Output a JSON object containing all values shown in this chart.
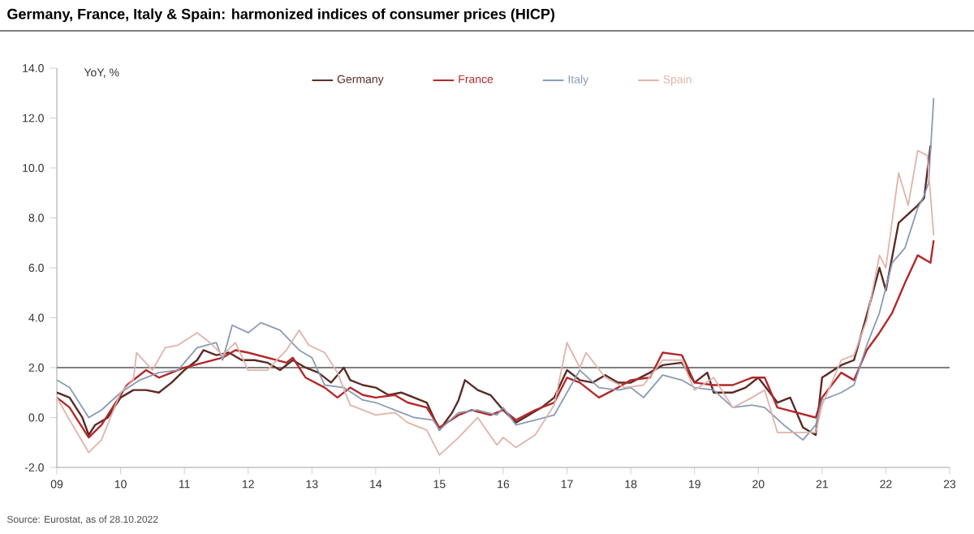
{
  "chart_data": {
    "type": "line",
    "title": "Germany, France, Italy & Spain: harmonized indices of consumer prices (HICP)",
    "ylabel": "YoY, %",
    "annotations": [
      "Source: Eurostat, as of 28.10.2022"
    ],
    "xlim": [
      2009,
      2023
    ],
    "ylim": [
      -2,
      14
    ],
    "xticks": [
      {
        "value": 2009,
        "label": "09"
      },
      {
        "value": 2010,
        "label": "10"
      },
      {
        "value": 2011,
        "label": "11"
      },
      {
        "value": 2012,
        "label": "12"
      },
      {
        "value": 2013,
        "label": "13"
      },
      {
        "value": 2014,
        "label": "14"
      },
      {
        "value": 2015,
        "label": "15"
      },
      {
        "value": 2016,
        "label": "16"
      },
      {
        "value": 2017,
        "label": "17"
      },
      {
        "value": 2018,
        "label": "18"
      },
      {
        "value": 2019,
        "label": "19"
      },
      {
        "value": 2020,
        "label": "20"
      },
      {
        "value": 2021,
        "label": "21"
      },
      {
        "value": 2022,
        "label": "22"
      },
      {
        "value": 2023,
        "label": "23"
      }
    ],
    "yticks": [
      {
        "value": -2,
        "label": "-2.0"
      },
      {
        "value": 0,
        "label": "0.0"
      },
      {
        "value": 2,
        "label": "2.0"
      },
      {
        "value": 4,
        "label": "4.0"
      },
      {
        "value": 6,
        "label": "6.0"
      },
      {
        "value": 8,
        "label": "8.0"
      },
      {
        "value": 10,
        "label": "10.0"
      },
      {
        "value": 12,
        "label": "12.0"
      },
      {
        "value": 14,
        "label": "14.0"
      }
    ],
    "ref_lines": [
      {
        "axis": "y",
        "value": 2,
        "color": "#555555"
      }
    ],
    "legend": "top",
    "grid": false,
    "marker": "none",
    "series": [
      {
        "name": "Germany",
        "color": "#5b2b25",
        "x": [
          2009.0,
          2009.2,
          2009.4,
          2009.5,
          2009.6,
          2009.8,
          2010.0,
          2010.2,
          2010.4,
          2010.6,
          2010.8,
          2011.0,
          2011.2,
          2011.3,
          2011.5,
          2011.7,
          2011.9,
          2012.1,
          2012.3,
          2012.5,
          2012.7,
          2012.9,
          2013.1,
          2013.3,
          2013.5,
          2013.6,
          2013.8,
          2014.0,
          2014.2,
          2014.4,
          2014.6,
          2014.8,
          2015.0,
          2015.2,
          2015.3,
          2015.4,
          2015.6,
          2015.8,
          2016.0,
          2016.2,
          2016.4,
          2016.6,
          2016.8,
          2017.0,
          2017.2,
          2017.4,
          2017.6,
          2017.8,
          2018.0,
          2018.3,
          2018.5,
          2018.8,
          2019.0,
          2019.2,
          2019.3,
          2019.6,
          2019.8,
          2020.0,
          2020.3,
          2020.5,
          2020.7,
          2020.9,
          2021.0,
          2021.3,
          2021.5,
          2021.7,
          2021.9,
          2022.0,
          2022.2,
          2022.5,
          2022.6,
          2022.7
        ],
        "values": [
          1.0,
          0.8,
          0.0,
          -0.7,
          -0.3,
          0.0,
          0.8,
          1.1,
          1.1,
          1.0,
          1.4,
          1.9,
          2.3,
          2.7,
          2.5,
          2.6,
          2.3,
          2.3,
          2.2,
          1.9,
          2.3,
          2.0,
          1.8,
          1.4,
          2.0,
          1.5,
          1.3,
          1.2,
          0.9,
          1.0,
          0.8,
          0.6,
          -0.5,
          0.2,
          0.7,
          1.5,
          1.1,
          0.9,
          0.3,
          -0.2,
          0.1,
          0.4,
          0.8,
          1.9,
          1.5,
          1.4,
          1.7,
          1.4,
          1.4,
          1.8,
          2.1,
          2.2,
          1.4,
          1.8,
          1.0,
          1.0,
          1.2,
          1.6,
          0.6,
          0.8,
          -0.4,
          -0.7,
          1.6,
          2.1,
          2.3,
          4.1,
          6.0,
          5.1,
          7.8,
          8.5,
          8.8,
          10.9
        ]
      },
      {
        "name": "France",
        "color": "#b4282a",
        "x": [
          2009.0,
          2009.2,
          2009.5,
          2009.7,
          2009.9,
          2010.1,
          2010.4,
          2010.6,
          2010.8,
          2011.0,
          2011.3,
          2011.6,
          2011.8,
          2012.0,
          2012.3,
          2012.6,
          2012.7,
          2012.9,
          2013.2,
          2013.4,
          2013.6,
          2013.8,
          2014.0,
          2014.3,
          2014.5,
          2014.8,
          2015.0,
          2015.3,
          2015.5,
          2015.8,
          2016.0,
          2016.2,
          2016.5,
          2016.8,
          2017.0,
          2017.2,
          2017.5,
          2017.8,
          2018.0,
          2018.3,
          2018.5,
          2018.8,
          2019.0,
          2019.3,
          2019.6,
          2019.9,
          2020.1,
          2020.3,
          2020.6,
          2020.9,
          2021.0,
          2021.3,
          2021.5,
          2021.7,
          2021.9,
          2022.1,
          2022.3,
          2022.5,
          2022.7,
          2022.75
        ],
        "values": [
          0.8,
          0.4,
          -0.8,
          -0.3,
          0.5,
          1.3,
          1.9,
          1.6,
          1.8,
          2.0,
          2.2,
          2.4,
          2.7,
          2.6,
          2.4,
          2.2,
          2.4,
          1.6,
          1.2,
          0.8,
          1.2,
          0.9,
          0.8,
          0.9,
          0.6,
          0.4,
          -0.4,
          0.1,
          0.3,
          0.1,
          0.3,
          -0.1,
          0.3,
          0.6,
          1.6,
          1.4,
          0.8,
          1.2,
          1.5,
          1.6,
          2.6,
          2.5,
          1.4,
          1.3,
          1.3,
          1.6,
          1.6,
          0.4,
          0.2,
          0.0,
          0.8,
          1.8,
          1.5,
          2.7,
          3.4,
          4.2,
          5.4,
          6.5,
          6.2,
          7.1
        ]
      },
      {
        "name": "Italy",
        "color": "#8a9bb5",
        "x": [
          2009.0,
          2009.2,
          2009.5,
          2009.7,
          2010.0,
          2010.3,
          2010.6,
          2010.9,
          2011.2,
          2011.5,
          2011.6,
          2011.75,
          2012.0,
          2012.2,
          2012.5,
          2012.8,
          2013.0,
          2013.2,
          2013.5,
          2013.8,
          2014.0,
          2014.3,
          2014.6,
          2014.9,
          2015.0,
          2015.3,
          2015.6,
          2015.9,
          2016.0,
          2016.2,
          2016.5,
          2016.8,
          2017.0,
          2017.2,
          2017.5,
          2017.8,
          2018.0,
          2018.2,
          2018.5,
          2018.8,
          2019.0,
          2019.3,
          2019.6,
          2019.9,
          2020.1,
          2020.4,
          2020.7,
          2020.9,
          2021.0,
          2021.3,
          2021.5,
          2021.7,
          2021.9,
          2022.1,
          2022.3,
          2022.5,
          2022.6,
          2022.67,
          2022.75
        ],
        "values": [
          1.5,
          1.2,
          0.0,
          0.3,
          1.0,
          1.5,
          1.8,
          1.9,
          2.8,
          3.0,
          2.3,
          3.7,
          3.4,
          3.8,
          3.5,
          2.7,
          2.4,
          1.3,
          1.2,
          0.7,
          0.6,
          0.3,
          0.0,
          -0.1,
          -0.5,
          0.2,
          0.3,
          0.1,
          0.4,
          -0.3,
          -0.1,
          0.1,
          1.0,
          1.9,
          1.2,
          1.1,
          1.2,
          0.8,
          1.7,
          1.5,
          1.2,
          1.1,
          0.4,
          0.5,
          0.4,
          -0.3,
          -0.9,
          -0.3,
          0.7,
          1.0,
          1.3,
          2.9,
          4.2,
          6.2,
          6.8,
          8.4,
          8.9,
          9.4,
          12.8
        ]
      },
      {
        "name": "Spain",
        "color": "#e0b3ab",
        "x": [
          2009.0,
          2009.2,
          2009.5,
          2009.7,
          2010.0,
          2010.2,
          2010.25,
          2010.5,
          2010.7,
          2010.9,
          2011.2,
          2011.4,
          2011.6,
          2011.8,
          2012.0,
          2012.3,
          2012.6,
          2012.8,
          2012.95,
          2013.2,
          2013.4,
          2013.6,
          2013.8,
          2014.0,
          2014.3,
          2014.5,
          2014.8,
          2015.0,
          2015.3,
          2015.6,
          2015.9,
          2016.0,
          2016.2,
          2016.5,
          2016.8,
          2017.0,
          2017.2,
          2017.3,
          2017.6,
          2017.9,
          2018.2,
          2018.5,
          2018.8,
          2019.0,
          2019.3,
          2019.6,
          2019.9,
          2020.1,
          2020.3,
          2020.6,
          2020.9,
          2021.0,
          2021.3,
          2021.5,
          2021.7,
          2021.9,
          2022.0,
          2022.2,
          2022.35,
          2022.5,
          2022.65,
          2022.75
        ],
        "values": [
          0.8,
          -0.1,
          -1.4,
          -0.9,
          1.0,
          1.5,
          2.6,
          1.9,
          2.8,
          2.9,
          3.4,
          3.0,
          2.5,
          3.0,
          1.9,
          1.9,
          2.7,
          3.5,
          2.9,
          2.6,
          1.8,
          0.5,
          0.3,
          0.1,
          0.2,
          -0.2,
          -0.5,
          -1.5,
          -0.8,
          0.0,
          -1.1,
          -0.8,
          -1.2,
          -0.7,
          0.5,
          3.0,
          2.0,
          2.6,
          1.6,
          1.2,
          1.3,
          2.3,
          2.3,
          1.1,
          1.6,
          0.4,
          0.8,
          1.1,
          -0.6,
          -0.6,
          -0.6,
          0.5,
          2.3,
          2.5,
          3.9,
          6.5,
          6.0,
          9.8,
          8.5,
          10.7,
          10.5,
          7.3
        ]
      }
    ]
  }
}
